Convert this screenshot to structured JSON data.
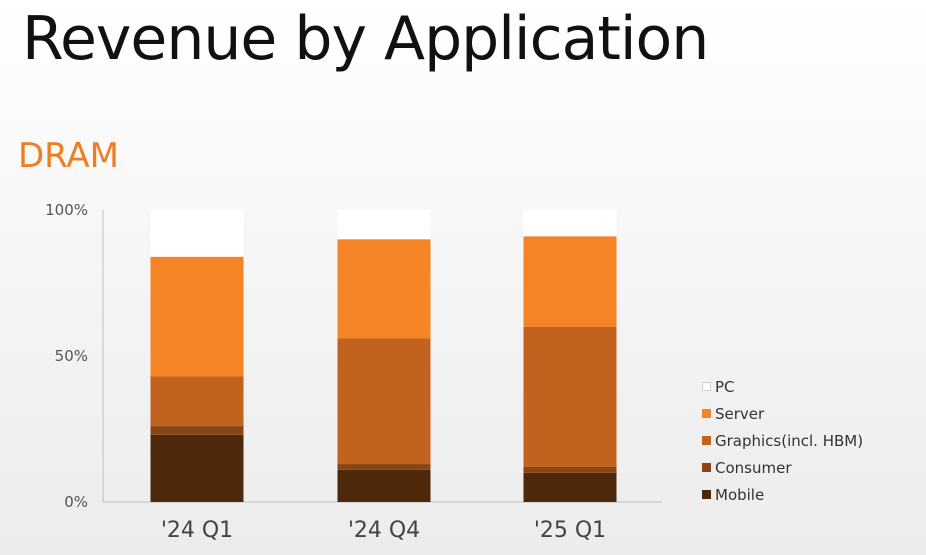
{
  "title": "Revenue by Application",
  "subtitle": "DRAM",
  "chart_data": {
    "type": "bar",
    "stacked": true,
    "categories": [
      "'24 Q1",
      "'24 Q4",
      "'25 Q1"
    ],
    "yticks": [
      "0%",
      "50%",
      "100%"
    ],
    "ylim": [
      0,
      100
    ],
    "series": [
      {
        "name": "Mobile",
        "color": "#4e280b",
        "values": [
          23,
          11,
          10
        ]
      },
      {
        "name": "Consumer",
        "color": "#8a4516",
        "values": [
          3,
          2,
          2
        ]
      },
      {
        "name": "Graphics(incl. HBM)",
        "color": "#c2621f",
        "values": [
          17,
          43,
          48
        ]
      },
      {
        "name": "Server",
        "color": "#f58426",
        "values": [
          41,
          34,
          31
        ]
      },
      {
        "name": "PC",
        "color": "#ffffff",
        "values": [
          16,
          10,
          9
        ]
      }
    ],
    "legend_order": [
      "PC",
      "Server",
      "Graphics(incl. HBM)",
      "Consumer",
      "Mobile"
    ],
    "legend_position": "right"
  }
}
